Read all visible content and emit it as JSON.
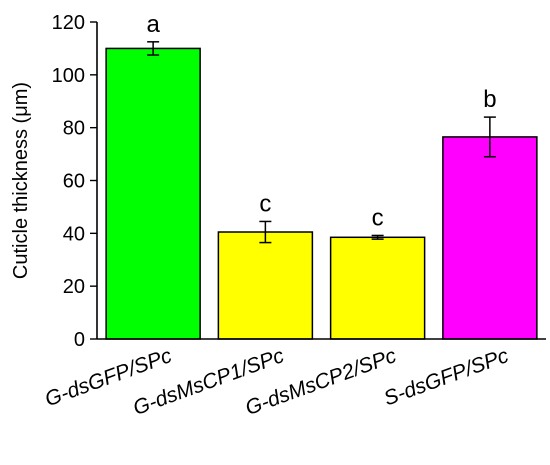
{
  "chart_data": {
    "type": "bar",
    "title": "",
    "xlabel": "",
    "ylabel": "Cuticle thickness (μm)",
    "ylim": [
      0,
      120
    ],
    "yticks": [
      0,
      20,
      40,
      60,
      80,
      100,
      120
    ],
    "grid": false,
    "legend": "none",
    "categories": [
      "G-dsGFP/SPc",
      "G-dsMsCP1/SPc",
      "G-dsMsCP2/SPc",
      "S-dsGFP/SPc"
    ],
    "values": [
      110,
      40.5,
      38.5,
      76.5
    ],
    "error": [
      2.5,
      4,
      0.7,
      7.5
    ],
    "significance": [
      "a",
      "c",
      "c",
      "b"
    ],
    "colors": [
      "#00ff00",
      "#ffff00",
      "#ffff00",
      "#ff00ff"
    ]
  }
}
